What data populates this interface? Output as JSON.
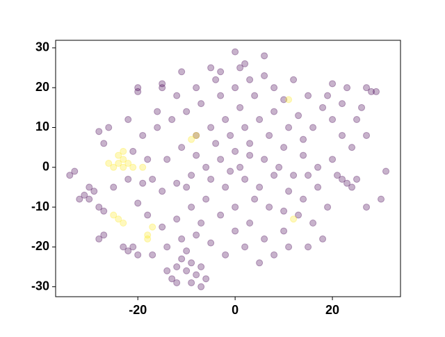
{
  "chart_data": {
    "type": "scatter",
    "xlim": [
      -36.9,
      34
    ],
    "ylim": [
      -32.5,
      31.9
    ],
    "xticks": [
      -20,
      0,
      20
    ],
    "yticks": [
      -30,
      -20,
      -10,
      0,
      10,
      20,
      30
    ],
    "grid": false,
    "series": [
      {
        "color": "#440154",
        "x": [
          -12,
          -10,
          -8,
          -13,
          -9,
          -7,
          -11,
          -6,
          -14,
          -9,
          -12,
          -7,
          -10,
          -31,
          -30,
          -29,
          -32,
          -28,
          -30,
          -27,
          -33,
          -34,
          -22,
          -20,
          -23,
          -21,
          -28,
          -27,
          23,
          25,
          24,
          22,
          30,
          31,
          27,
          28,
          29,
          27,
          0,
          6,
          2,
          -5,
          -3,
          -11,
          -20,
          -15,
          -5,
          -2,
          1,
          4,
          8,
          12,
          15,
          18,
          20,
          22,
          24,
          20,
          17,
          14,
          10,
          7,
          3,
          0,
          -3,
          -6,
          -9,
          -12,
          -15,
          -17,
          -14,
          -11,
          -8,
          -4,
          -1,
          2,
          5,
          8,
          11,
          14,
          17,
          19,
          16,
          13,
          10,
          6,
          3,
          0,
          -3,
          -6,
          -9,
          -12,
          -15,
          -18,
          -20,
          -16,
          -19,
          -13,
          -10,
          -7,
          -3,
          0,
          3,
          6,
          10,
          13,
          16,
          19,
          22,
          25,
          26,
          27,
          21,
          18,
          15,
          11,
          8,
          5,
          2,
          -2,
          -5,
          -8,
          -11,
          -14,
          -17,
          -19,
          -22,
          -25,
          -21,
          -18,
          -16,
          -12,
          -8,
          -4,
          1,
          -1,
          2,
          5,
          8,
          11,
          14,
          6,
          9,
          4,
          -2,
          -5,
          -8,
          1,
          3,
          7,
          10,
          -10,
          -7,
          0,
          -27,
          -28,
          -26,
          -22,
          -20,
          -15,
          12,
          15,
          23,
          20
        ],
        "values": [
          -25,
          -26,
          -27,
          -28,
          -29,
          -25,
          -23,
          -28,
          -26,
          -24,
          -29,
          -30,
          -21,
          -7,
          -8,
          -6,
          -8,
          -10,
          -5,
          -11,
          -1,
          -2,
          -21,
          -22,
          -20,
          -20,
          -18,
          -17,
          -4,
          -3,
          -5,
          -3,
          -8,
          -1,
          -10,
          19,
          19,
          20,
          29,
          28,
          26,
          25,
          24,
          24,
          20,
          20,
          10,
          12,
          15,
          18,
          20,
          22,
          18,
          15,
          12,
          8,
          5,
          2,
          0,
          3,
          5,
          8,
          6,
          4,
          2,
          0,
          -2,
          -4,
          -6,
          -3,
          2,
          5,
          8,
          6,
          -1,
          -3,
          -5,
          -2,
          -6,
          -8,
          -5,
          -10,
          -14,
          -12,
          -16,
          -18,
          -14,
          -10,
          -12,
          -8,
          -10,
          -13,
          -15,
          -12,
          -9,
          10,
          8,
          12,
          14,
          16,
          18,
          20,
          22,
          23,
          17,
          13,
          10,
          18,
          16,
          12,
          15,
          8,
          -2,
          -18,
          -20,
          -20,
          -22,
          -24,
          -20,
          -22,
          -19,
          -17,
          -18,
          -20,
          -22,
          -4,
          -3,
          -5,
          4,
          2,
          14,
          18,
          20,
          22,
          25,
          8,
          10,
          12,
          14,
          10,
          7,
          2,
          0,
          -8,
          -5,
          -3,
          3,
          0,
          3,
          -10,
          -11,
          -5,
          -14,
          -16,
          6,
          9,
          10,
          12,
          19,
          21,
          -2,
          -2,
          20,
          21
        ]
      },
      {
        "color": "#fde725",
        "x": [
          -24,
          -23,
          -25,
          -22,
          -24,
          -23,
          -26,
          -21,
          -19,
          -24,
          -23,
          -25,
          -18,
          -17,
          -18,
          11,
          -8,
          -9,
          12,
          -23
        ],
        "values": [
          1,
          2,
          0,
          1,
          3,
          4,
          1,
          0,
          0,
          -13,
          -14,
          -12,
          -17,
          -15,
          -18,
          17,
          8,
          7,
          -13,
          0
        ]
      }
    ]
  }
}
